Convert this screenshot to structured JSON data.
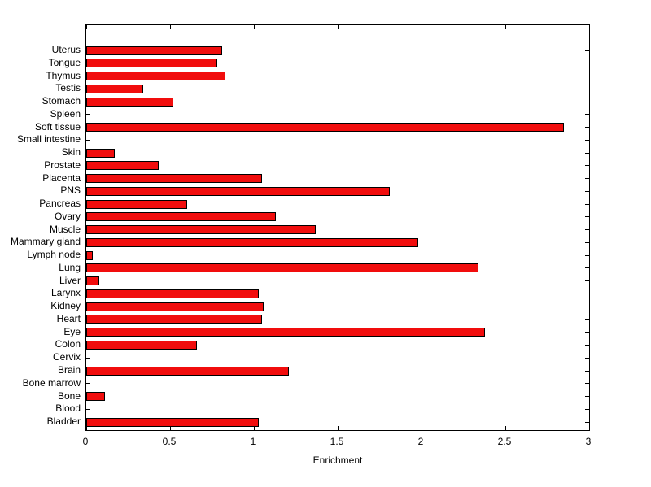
{
  "chart_data": {
    "type": "bar",
    "orientation": "horizontal",
    "title": "",
    "xlabel": "Enrichment",
    "ylabel": "",
    "xlim": [
      0,
      3
    ],
    "xticks": [
      0,
      0.5,
      1,
      1.5,
      2,
      2.5,
      3
    ],
    "xtick_labels": [
      "0",
      "0.5",
      "1",
      "1.5",
      "2",
      "2.5",
      "3"
    ],
    "grid": false,
    "legend": "none",
    "bar_fill": "#f10d0d",
    "bar_edge": "#000000",
    "categories": [
      "Uterus",
      "Tongue",
      "Thymus",
      "Testis",
      "Stomach",
      "Spleen",
      "Soft tissue",
      "Small intestine",
      "Skin",
      "Prostate",
      "Placenta",
      "PNS",
      "Pancreas",
      "Ovary",
      "Muscle",
      "Mammary gland",
      "Lymph node",
      "Lung",
      "Liver",
      "Larynx",
      "Kidney",
      "Heart",
      "Eye",
      "Colon",
      "Cervix",
      "Brain",
      "Bone marrow",
      "Bone",
      "Blood",
      "Bladder"
    ],
    "values": [
      0.81,
      0.78,
      0.83,
      0.34,
      0.52,
      0,
      2.85,
      0,
      0.17,
      0.43,
      1.05,
      1.81,
      0.6,
      1.13,
      1.37,
      1.98,
      0.04,
      2.34,
      0.08,
      1.03,
      1.06,
      1.05,
      2.38,
      0.66,
      0,
      1.21,
      0,
      0.11,
      0,
      1.03
    ]
  }
}
